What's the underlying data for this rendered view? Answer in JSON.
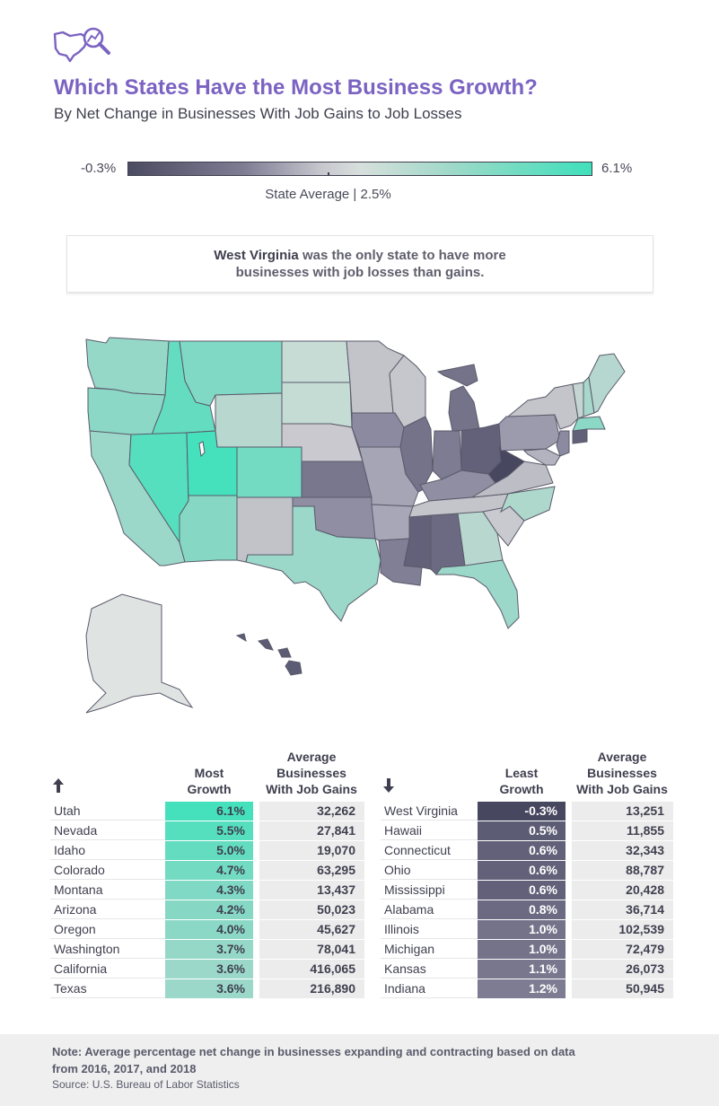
{
  "header": {
    "title": "Which States Have the Most Business Growth?",
    "subtitle": "By Net Change in Businesses With Job Gains to Job Losses",
    "logo_icon": "us-map-magnifier-icon"
  },
  "scale": {
    "min_label": "-0.3%",
    "max_label": "6.1%",
    "average_label": "State Average | 2.5%",
    "min_value": -0.3,
    "max_value": 6.1,
    "average_value": 2.5,
    "colors": {
      "low": "#4b4b61",
      "mid": "#d7dfdc",
      "high": "#3fe0bb"
    }
  },
  "callout": {
    "highlight": "West Virginia",
    "text_1": " was the only state to have more",
    "text_2": "businesses with job losses than gains."
  },
  "most": {
    "arrow_icon": "arrow-up-icon",
    "col_growth": [
      "Most",
      "Growth"
    ],
    "col_avg": [
      "Average",
      "Businesses",
      "With Job Gains"
    ],
    "rows": [
      {
        "state": "Utah",
        "growth": "6.1%",
        "avg": "32,262",
        "color": "#45e1bd"
      },
      {
        "state": "Nevada",
        "growth": "5.5%",
        "avg": "27,841",
        "color": "#55dfbe"
      },
      {
        "state": "Idaho",
        "growth": "5.0%",
        "avg": "19,070",
        "color": "#64dcc0"
      },
      {
        "state": "Colorado",
        "growth": "4.7%",
        "avg": "63,295",
        "color": "#72dbc2"
      },
      {
        "state": "Montana",
        "growth": "4.3%",
        "avg": "13,437",
        "color": "#80d9c4"
      },
      {
        "state": "Arizona",
        "growth": "4.2%",
        "avg": "50,023",
        "color": "#86d8c5"
      },
      {
        "state": "Oregon",
        "growth": "4.0%",
        "avg": "45,627",
        "color": "#8cd8c6"
      },
      {
        "state": "Washington",
        "growth": "3.7%",
        "avg": "78,041",
        "color": "#96d8c8"
      },
      {
        "state": "California",
        "growth": "3.6%",
        "avg": "416,065",
        "color": "#9bd8c9"
      },
      {
        "state": "Texas",
        "growth": "3.6%",
        "avg": "216,890",
        "color": "#9bd8c9"
      }
    ]
  },
  "least": {
    "arrow_icon": "arrow-down-icon",
    "col_growth": [
      "Least",
      "Growth"
    ],
    "col_avg": [
      "Average",
      "Businesses",
      "With Job Gains"
    ],
    "rows": [
      {
        "state": "West Virginia",
        "growth": "-0.3%",
        "avg": "13,251",
        "color": "#474760"
      },
      {
        "state": "Hawaii",
        "growth": "0.5%",
        "avg": "11,855",
        "color": "#5d5c75"
      },
      {
        "state": "Connecticut",
        "growth": "0.6%",
        "avg": "32,343",
        "color": "#626179"
      },
      {
        "state": "Ohio",
        "growth": "0.6%",
        "avg": "88,787",
        "color": "#626179"
      },
      {
        "state": "Mississippi",
        "growth": "0.6%",
        "avg": "20,428",
        "color": "#626179"
      },
      {
        "state": "Alabama",
        "growth": "0.8%",
        "avg": "36,714",
        "color": "#6b6a82"
      },
      {
        "state": "Illinois",
        "growth": "1.0%",
        "avg": "102,539",
        "color": "#74738a"
      },
      {
        "state": "Michigan",
        "growth": "1.0%",
        "avg": "72,479",
        "color": "#74738a"
      },
      {
        "state": "Kansas",
        "growth": "1.1%",
        "avg": "26,073",
        "color": "#78778e"
      },
      {
        "state": "Indiana",
        "growth": "1.2%",
        "avg": "50,945",
        "color": "#7d7c92"
      }
    ]
  },
  "footer": {
    "note_1": "Note: Average percentage net change in businesses expanding and contracting based on data",
    "note_2": "from 2016, 2017, and 2018",
    "source": "Source: U.S. Bureau of Labor Statistics"
  }
}
